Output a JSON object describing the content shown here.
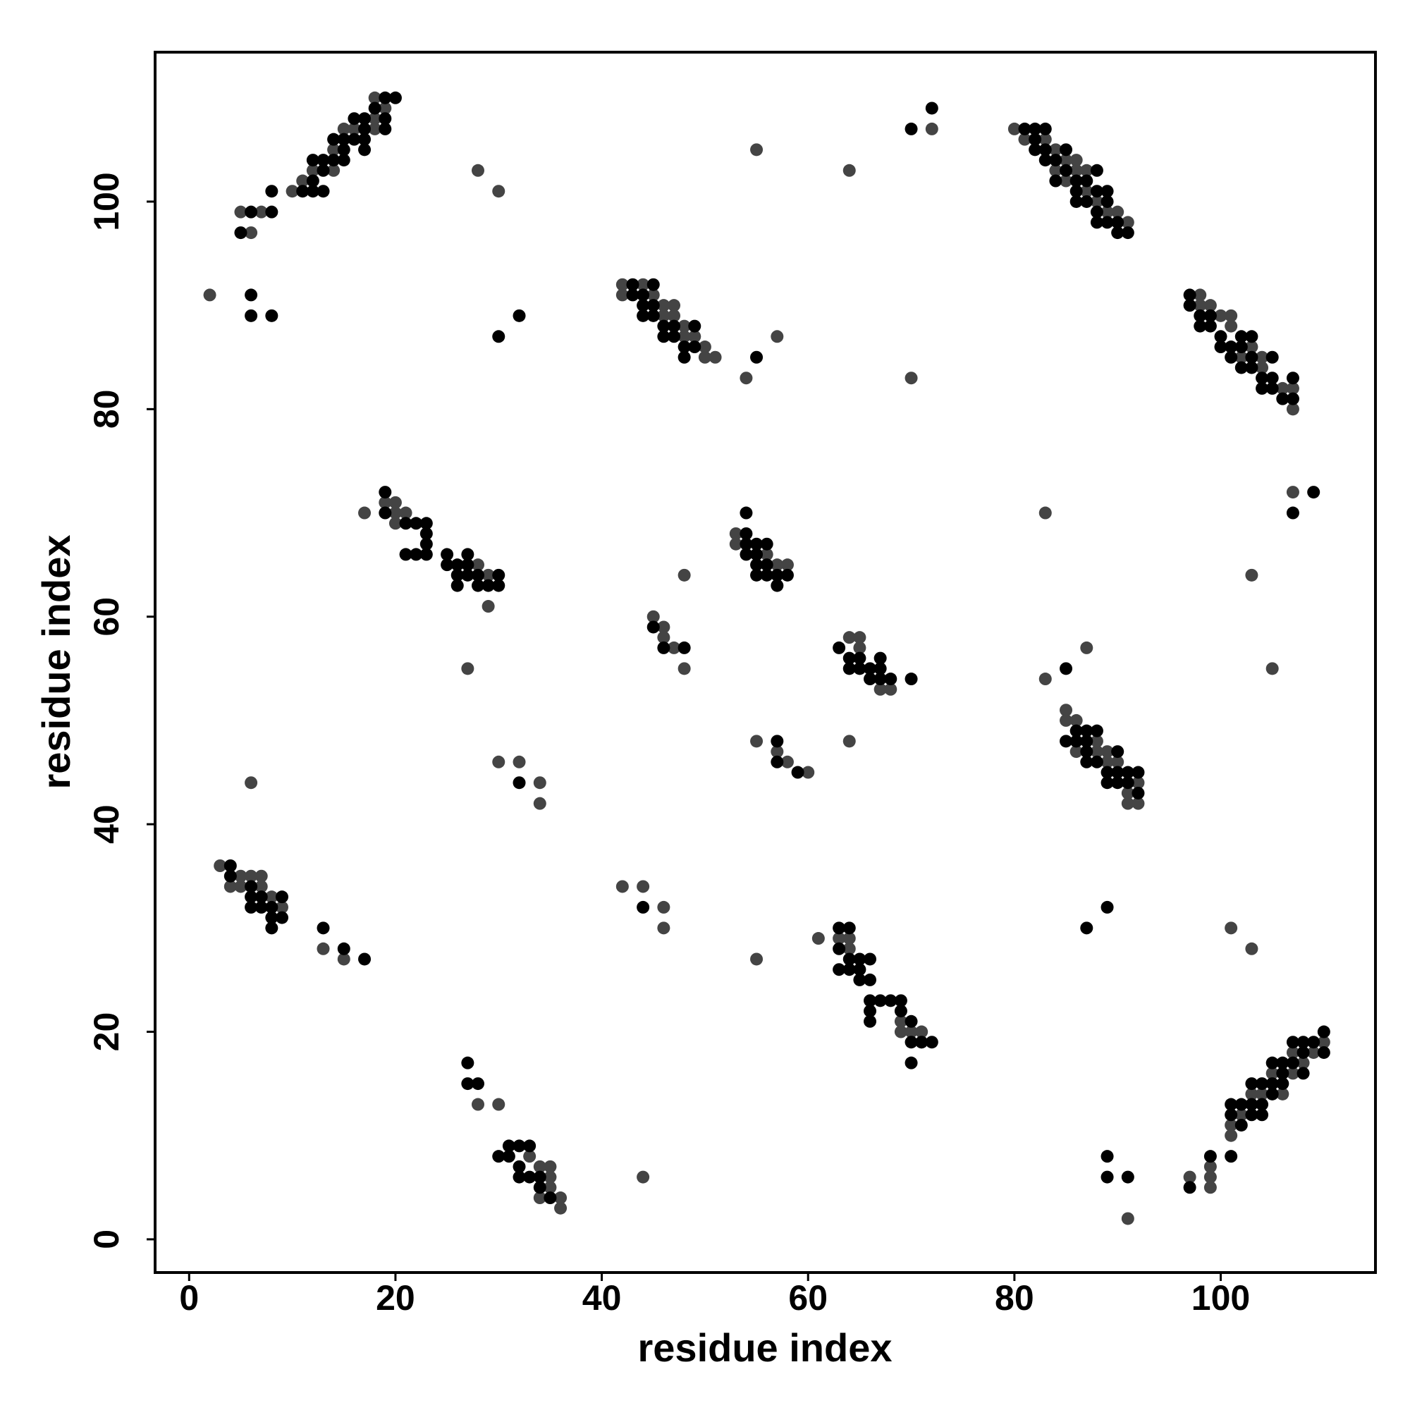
{
  "chart_data": {
    "type": "scatter",
    "xlabel": "residue index",
    "ylabel": "residue index",
    "xlim": [
      -3.3,
      115
    ],
    "ylim": [
      -3.2,
      114.4
    ],
    "xticks": [
      0,
      20,
      40,
      60,
      80,
      100
    ],
    "yticks": [
      0,
      20,
      40,
      60,
      80,
      100
    ],
    "grid": false,
    "series": [
      {
        "color": "#444444",
        "x": [
          6,
          5,
          7,
          10,
          11,
          12,
          14,
          14,
          16,
          15,
          18,
          18,
          19,
          18,
          2,
          28,
          30,
          55,
          64,
          72,
          54,
          57,
          70,
          42,
          42,
          44,
          45,
          46,
          47,
          47,
          48,
          48,
          49,
          50,
          50,
          51,
          46,
          80,
          81,
          83,
          84,
          84,
          85,
          85,
          86,
          86,
          87,
          88,
          89,
          90,
          91,
          87,
          98,
          98,
          99,
          100,
          101,
          101,
          102,
          103,
          104,
          104,
          106,
          107,
          107,
          107,
          83,
          103,
          105,
          87,
          83,
          17,
          19,
          20,
          20,
          20,
          21,
          28,
          29,
          29,
          27,
          30,
          32,
          34,
          34,
          6,
          48,
          53,
          53,
          56,
          57,
          58,
          45,
          46,
          46,
          47,
          48,
          64,
          65,
          65,
          67,
          68,
          64,
          55,
          57,
          58,
          60,
          85,
          85,
          86,
          86,
          88,
          88,
          89,
          89,
          90,
          91,
          91,
          92,
          92,
          3,
          4,
          5,
          5,
          6,
          7,
          7,
          8,
          9,
          13,
          15,
          42,
          44,
          46,
          46,
          55,
          61,
          101,
          103,
          63,
          64,
          64,
          69,
          69,
          70,
          71,
          71,
          28,
          30,
          33,
          34,
          34,
          35,
          35,
          35,
          36,
          36,
          44,
          91,
          97,
          99,
          99,
          99,
          101,
          101,
          102,
          103,
          104,
          105,
          106,
          107,
          107,
          108,
          109,
          110
        ],
        "values": [
          97,
          99,
          99,
          101,
          102,
          103,
          103,
          105,
          107,
          107,
          107,
          108,
          109,
          110,
          91,
          103,
          101,
          105,
          103,
          107,
          83,
          87,
          83,
          92,
          91,
          92,
          91,
          90,
          90,
          89,
          88,
          87,
          87,
          86,
          85,
          85,
          89,
          107,
          106,
          106,
          105,
          103,
          104,
          102,
          104,
          103,
          101,
          100,
          99,
          99,
          98,
          103,
          91,
          90,
          90,
          89,
          89,
          88,
          85,
          86,
          84,
          85,
          82,
          82,
          80,
          72,
          70,
          64,
          55,
          57,
          54,
          70,
          71,
          71,
          70,
          69,
          70,
          65,
          64,
          61,
          55,
          46,
          46,
          44,
          42,
          44,
          64,
          68,
          67,
          66,
          65,
          65,
          60,
          59,
          58,
          57,
          55,
          58,
          58,
          57,
          53,
          53,
          48,
          48,
          47,
          46,
          45,
          51,
          50,
          50,
          47,
          48,
          47,
          47,
          46,
          46,
          43,
          42,
          44,
          42,
          36,
          34,
          35,
          34,
          35,
          35,
          34,
          33,
          32,
          28,
          27,
          34,
          34,
          32,
          30,
          27,
          29,
          30,
          28,
          29,
          29,
          28,
          21,
          20,
          20,
          20,
          19,
          13,
          13,
          8,
          7,
          4,
          7,
          6,
          5,
          4,
          3,
          6,
          2,
          6,
          7,
          6,
          5,
          11,
          10,
          12,
          14,
          14,
          16,
          14,
          18,
          16,
          17,
          18,
          19
        ]
      },
      {
        "color": "#000000",
        "x": [
          5,
          6,
          8,
          8,
          11,
          12,
          13,
          12,
          13,
          12,
          13,
          14,
          15,
          14,
          15,
          15,
          16,
          17,
          17,
          16,
          17,
          17,
          19,
          19,
          18,
          19,
          20,
          6,
          6,
          8,
          30,
          32,
          70,
          72,
          55,
          43,
          44,
          44,
          45,
          45,
          45,
          46,
          46,
          47,
          47,
          48,
          48,
          49,
          49,
          44,
          43,
          81,
          82,
          83,
          82,
          82,
          83,
          83,
          84,
          84,
          85,
          85,
          86,
          86,
          86,
          87,
          87,
          88,
          88,
          88,
          88,
          89,
          89,
          89,
          90,
          91,
          90,
          97,
          97,
          98,
          98,
          99,
          99,
          100,
          100,
          101,
          101,
          102,
          102,
          102,
          103,
          103,
          104,
          104,
          105,
          105,
          105,
          106,
          107,
          107,
          103,
          109,
          107,
          85,
          19,
          19,
          21,
          22,
          23,
          23,
          23,
          21,
          22,
          23,
          25,
          25,
          26,
          26,
          27,
          27,
          27,
          26,
          28,
          28,
          29,
          30,
          30,
          32,
          54,
          54,
          54,
          55,
          56,
          54,
          55,
          55,
          56,
          56,
          57,
          57,
          55,
          58,
          45,
          46,
          48,
          63,
          64,
          64,
          65,
          65,
          66,
          66,
          67,
          67,
          67,
          68,
          70,
          57,
          57,
          59,
          85,
          86,
          86,
          87,
          87,
          87,
          87,
          88,
          88,
          89,
          89,
          90,
          90,
          90,
          91,
          91,
          92,
          92,
          4,
          4,
          6,
          6,
          6,
          7,
          7,
          8,
          8,
          8,
          9,
          9,
          13,
          15,
          17,
          44,
          89,
          87,
          63,
          64,
          63,
          63,
          64,
          64,
          65,
          65,
          65,
          66,
          66,
          66,
          67,
          68,
          69,
          66,
          66,
          69,
          70,
          70,
          71,
          72,
          70,
          27,
          27,
          28,
          30,
          31,
          31,
          32,
          32,
          32,
          33,
          33,
          34,
          34,
          35,
          89,
          89,
          91,
          97,
          99,
          101,
          101,
          102,
          103,
          101,
          102,
          103,
          103,
          104,
          104,
          104,
          105,
          105,
          106,
          106,
          106,
          107,
          107,
          108,
          108,
          108,
          109,
          110,
          110,
          105
        ],
        "values": [
          97,
          99,
          99,
          101,
          101,
          101,
          101,
          102,
          103,
          104,
          104,
          104,
          104,
          106,
          105,
          106,
          106,
          105,
          106,
          108,
          108,
          107,
          107,
          108,
          109,
          110,
          110,
          91,
          89,
          89,
          87,
          89,
          107,
          109,
          85,
          92,
          91,
          89,
          92,
          90,
          89,
          88,
          87,
          88,
          87,
          86,
          85,
          88,
          86,
          90,
          91,
          107,
          107,
          107,
          106,
          105,
          105,
          104,
          104,
          102,
          105,
          103,
          102,
          101,
          100,
          100,
          102,
          103,
          101,
          99,
          98,
          98,
          101,
          100,
          97,
          97,
          98,
          91,
          90,
          89,
          88,
          88,
          89,
          87,
          86,
          86,
          85,
          87,
          86,
          84,
          85,
          84,
          82,
          83,
          85,
          83,
          82,
          81,
          81,
          83,
          87,
          72,
          70,
          55,
          72,
          70,
          69,
          69,
          69,
          68,
          67,
          66,
          66,
          66,
          66,
          65,
          65,
          64,
          66,
          65,
          64,
          63,
          64,
          63,
          63,
          64,
          63,
          44,
          70,
          68,
          67,
          67,
          67,
          66,
          66,
          65,
          65,
          64,
          64,
          63,
          64,
          64,
          59,
          57,
          57,
          57,
          56,
          55,
          55,
          56,
          55,
          54,
          56,
          55,
          54,
          54,
          54,
          48,
          46,
          45,
          48,
          49,
          48,
          49,
          48,
          47,
          46,
          49,
          46,
          45,
          44,
          47,
          45,
          44,
          44,
          45,
          45,
          43,
          36,
          35,
          34,
          33,
          32,
          33,
          32,
          32,
          31,
          30,
          33,
          31,
          30,
          28,
          27,
          32,
          32,
          30,
          30,
          30,
          28,
          26,
          27,
          26,
          27,
          26,
          25,
          27,
          25,
          23,
          23,
          23,
          23,
          22,
          21,
          22,
          21,
          19,
          19,
          19,
          17,
          17,
          15,
          15,
          8,
          9,
          8,
          9,
          7,
          6,
          9,
          6,
          6,
          5,
          4,
          8,
          6,
          6,
          5,
          8,
          8,
          13,
          13,
          13,
          12,
          11,
          15,
          12,
          15,
          13,
          12,
          17,
          15,
          17,
          16,
          15,
          19,
          17,
          19,
          18,
          16,
          19,
          20,
          18,
          14
        ]
      }
    ]
  }
}
